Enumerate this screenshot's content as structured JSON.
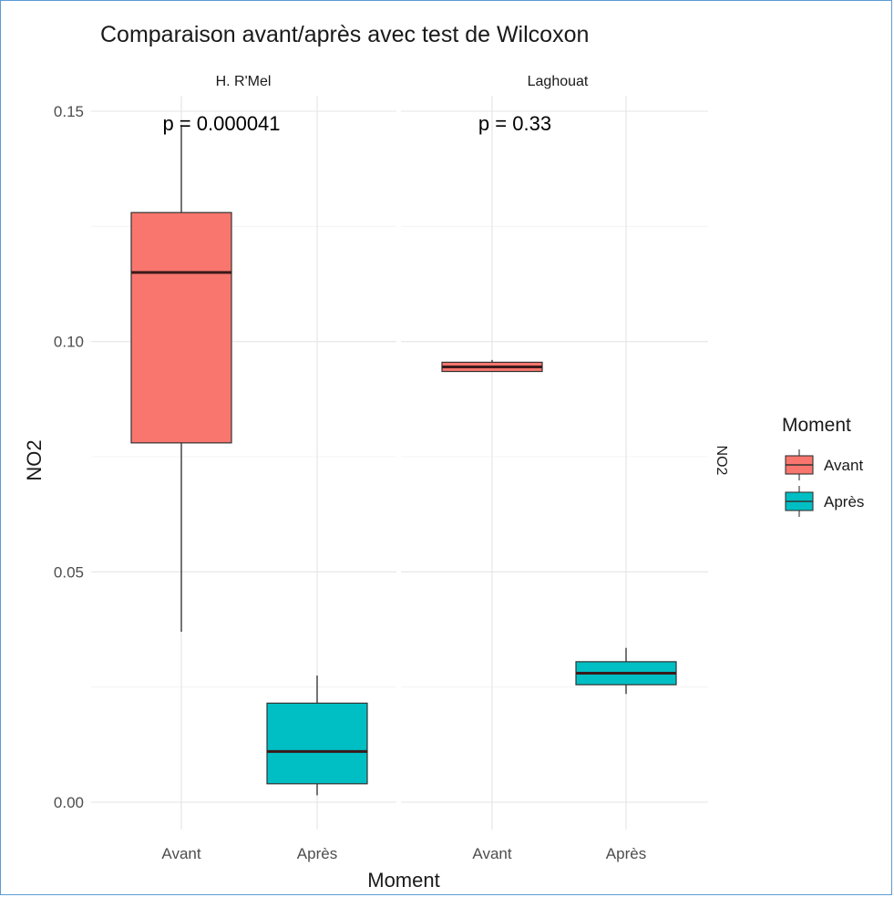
{
  "chart_data": {
    "type": "boxplot",
    "title": "Comparaison avant/après avec test de Wilcoxon",
    "xlabel": "Moment",
    "ylabel": "NO2",
    "secondary_ylabel": "NO2",
    "categories": [
      "Avant",
      "Après"
    ],
    "ylim": [
      0,
      0.15
    ],
    "yticks": [
      0.0,
      0.05,
      0.1,
      0.15
    ],
    "ytick_labels": [
      "0.00",
      "0.05",
      "0.10",
      "0.15"
    ],
    "legend": {
      "title": "Moment",
      "position": "right",
      "entries": [
        {
          "label": "Avant",
          "color": "#F8766D"
        },
        {
          "label": "Après",
          "color": "#00BFC4"
        }
      ]
    },
    "panels": [
      {
        "facet": "H. R'Mel",
        "p_label": "p = 0.000041",
        "boxes": [
          {
            "category": "Avant",
            "min": 0.037,
            "q1": 0.078,
            "median": 0.115,
            "q3": 0.128,
            "max": 0.147
          },
          {
            "category": "Après",
            "min": 0.0015,
            "q1": 0.004,
            "median": 0.011,
            "q3": 0.0215,
            "max": 0.0275
          }
        ]
      },
      {
        "facet": "Laghouat",
        "p_label": "p = 0.33",
        "boxes": [
          {
            "category": "Avant",
            "min": 0.0935,
            "q1": 0.0935,
            "median": 0.0945,
            "q3": 0.0955,
            "max": 0.096
          },
          {
            "category": "Après",
            "min": 0.0235,
            "q1": 0.0255,
            "median": 0.028,
            "q3": 0.0305,
            "max": 0.0335
          }
        ]
      }
    ],
    "grid": true
  }
}
